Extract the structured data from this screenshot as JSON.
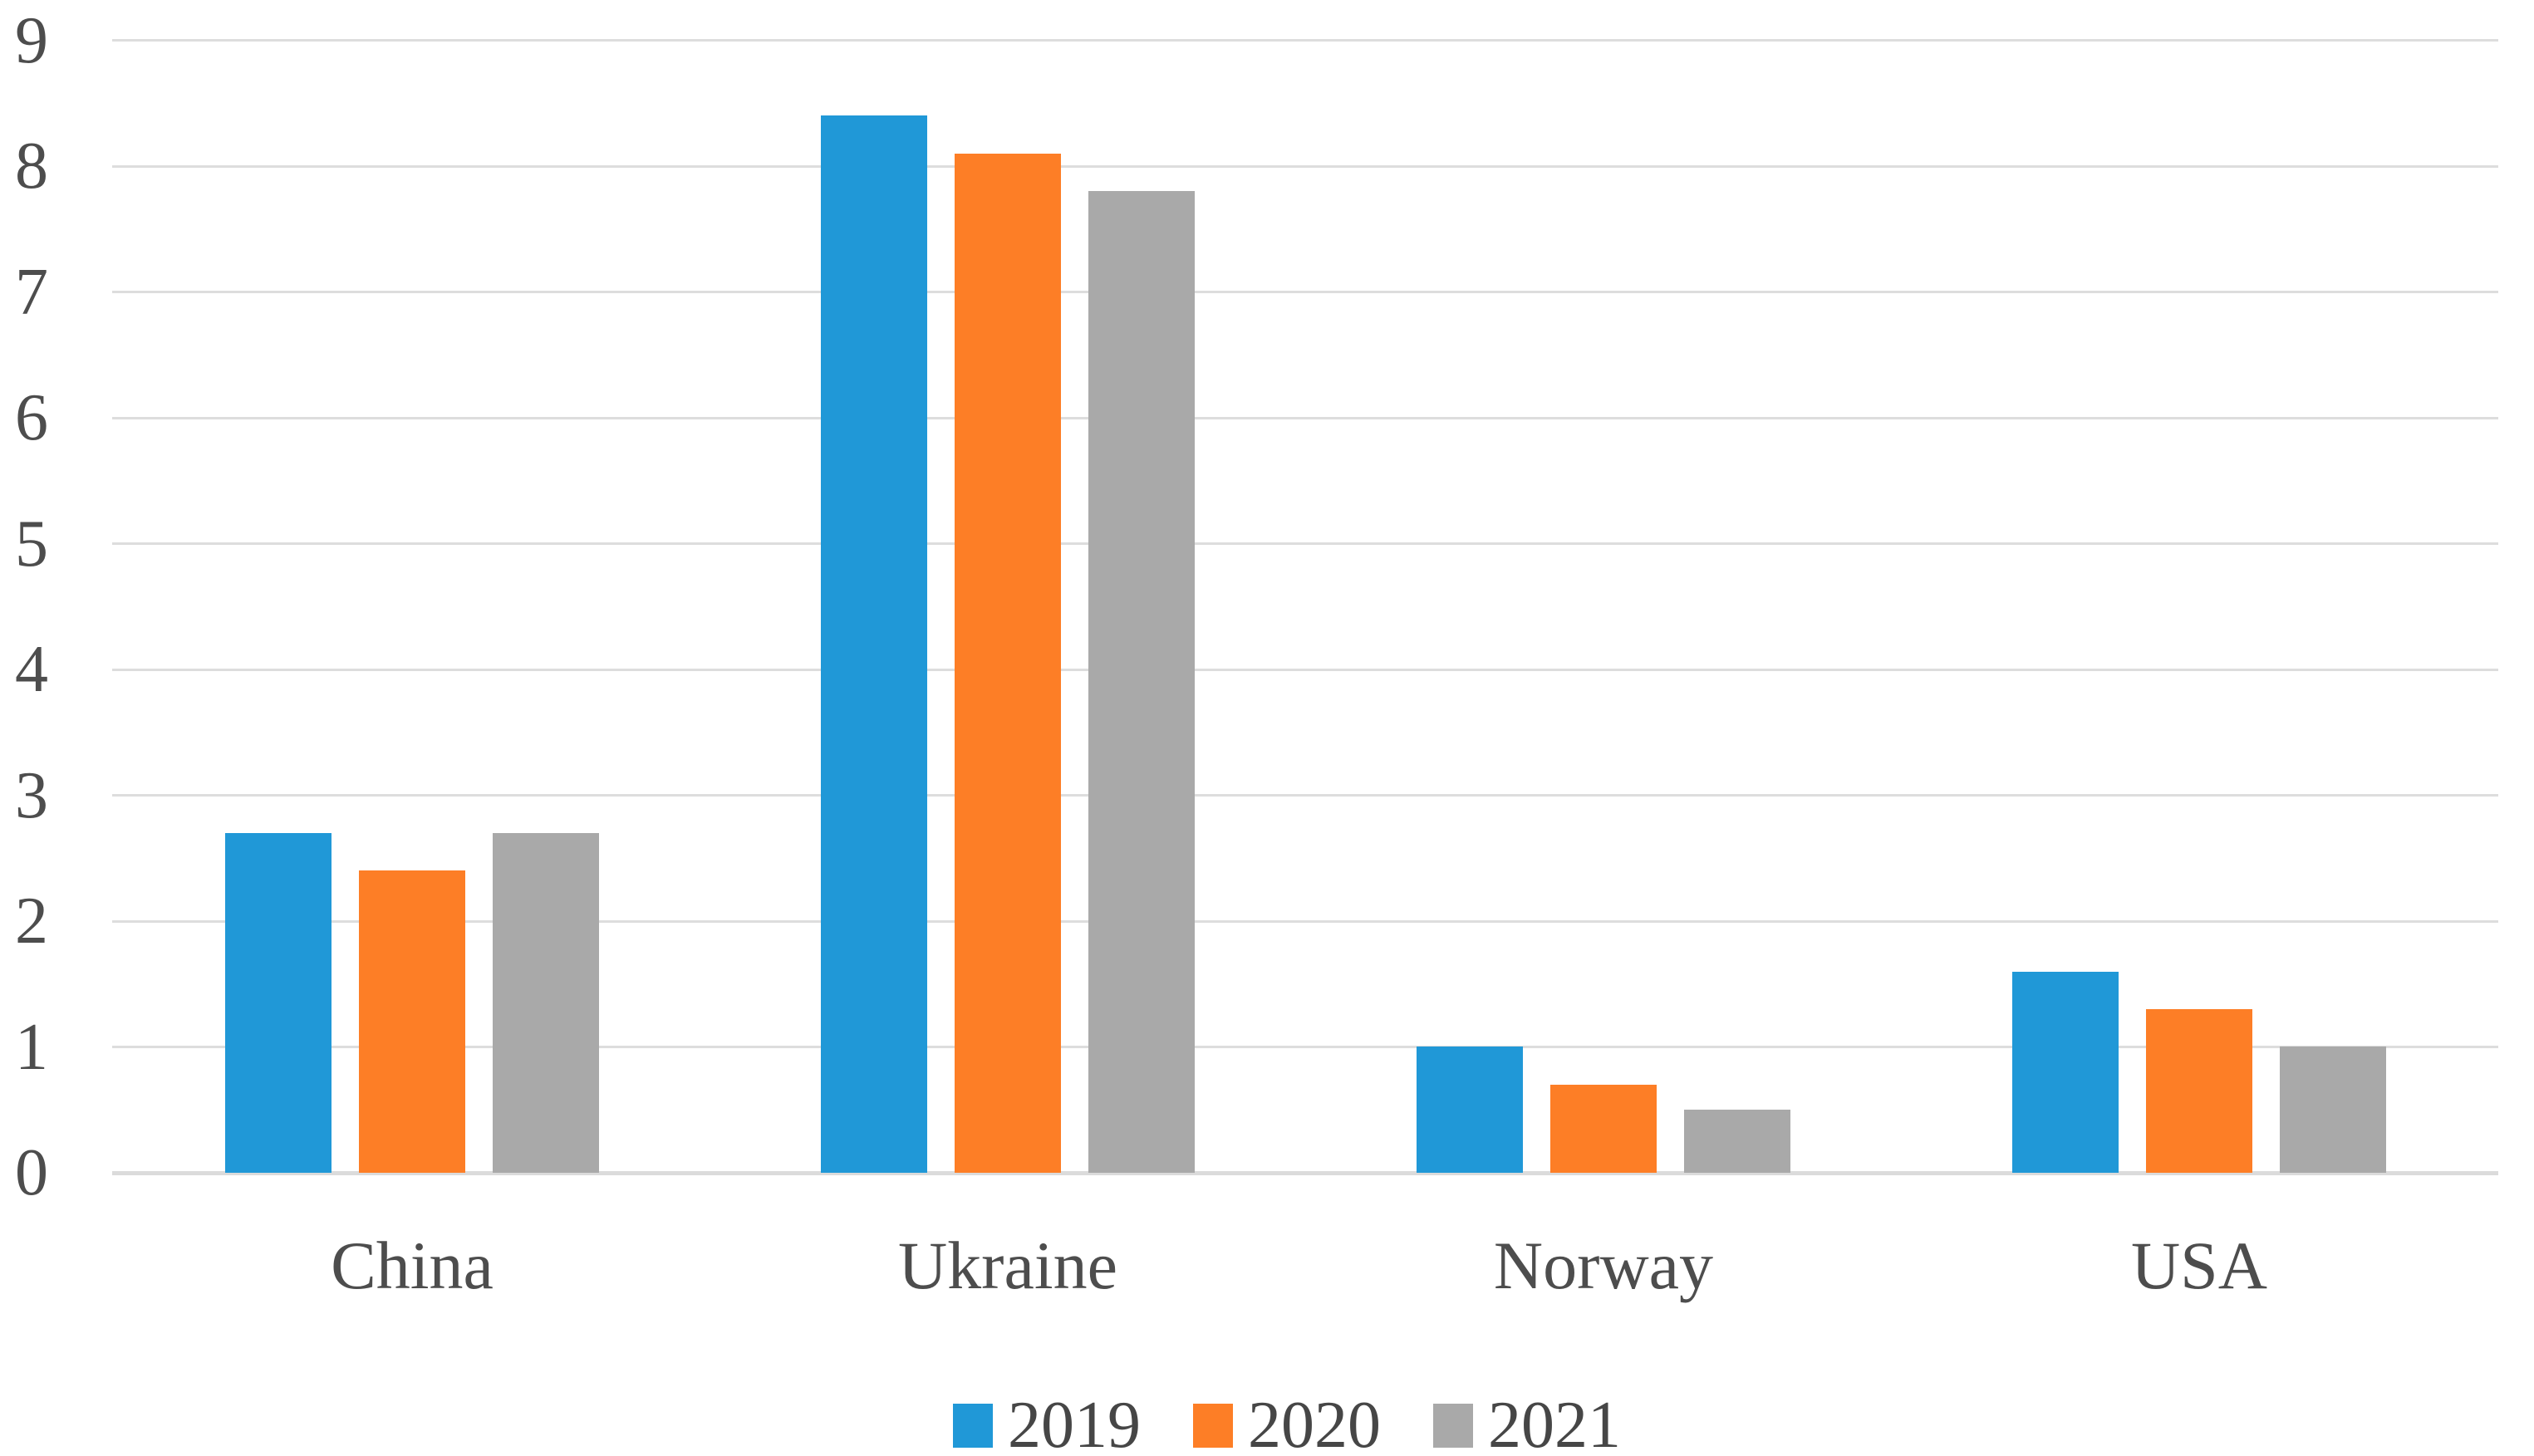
{
  "chart_data": {
    "type": "bar",
    "title": "",
    "xlabel": "",
    "ylabel": "",
    "categories": [
      "China",
      "Ukraine",
      "Norway",
      "USA"
    ],
    "series": [
      {
        "name": "2019",
        "color": "#2098d7",
        "values": [
          2.7,
          8.4,
          1.0,
          1.6
        ]
      },
      {
        "name": "2020",
        "color": "#fd7e26",
        "values": [
          2.4,
          8.1,
          0.7,
          1.3
        ]
      },
      {
        "name": "2021",
        "color": "#a9a9a9",
        "values": [
          2.7,
          7.8,
          0.5,
          1.0
        ]
      }
    ],
    "ylim": [
      0,
      9
    ],
    "yticks": [
      0,
      1,
      2,
      3,
      4,
      5,
      6,
      7,
      8,
      9
    ],
    "grid": true,
    "gridline_color": "#dddddd",
    "tick_label_color": "#4d4d4d",
    "legend_position": "bottom",
    "legend_entries": [
      "2019",
      "2020",
      "2021"
    ]
  }
}
